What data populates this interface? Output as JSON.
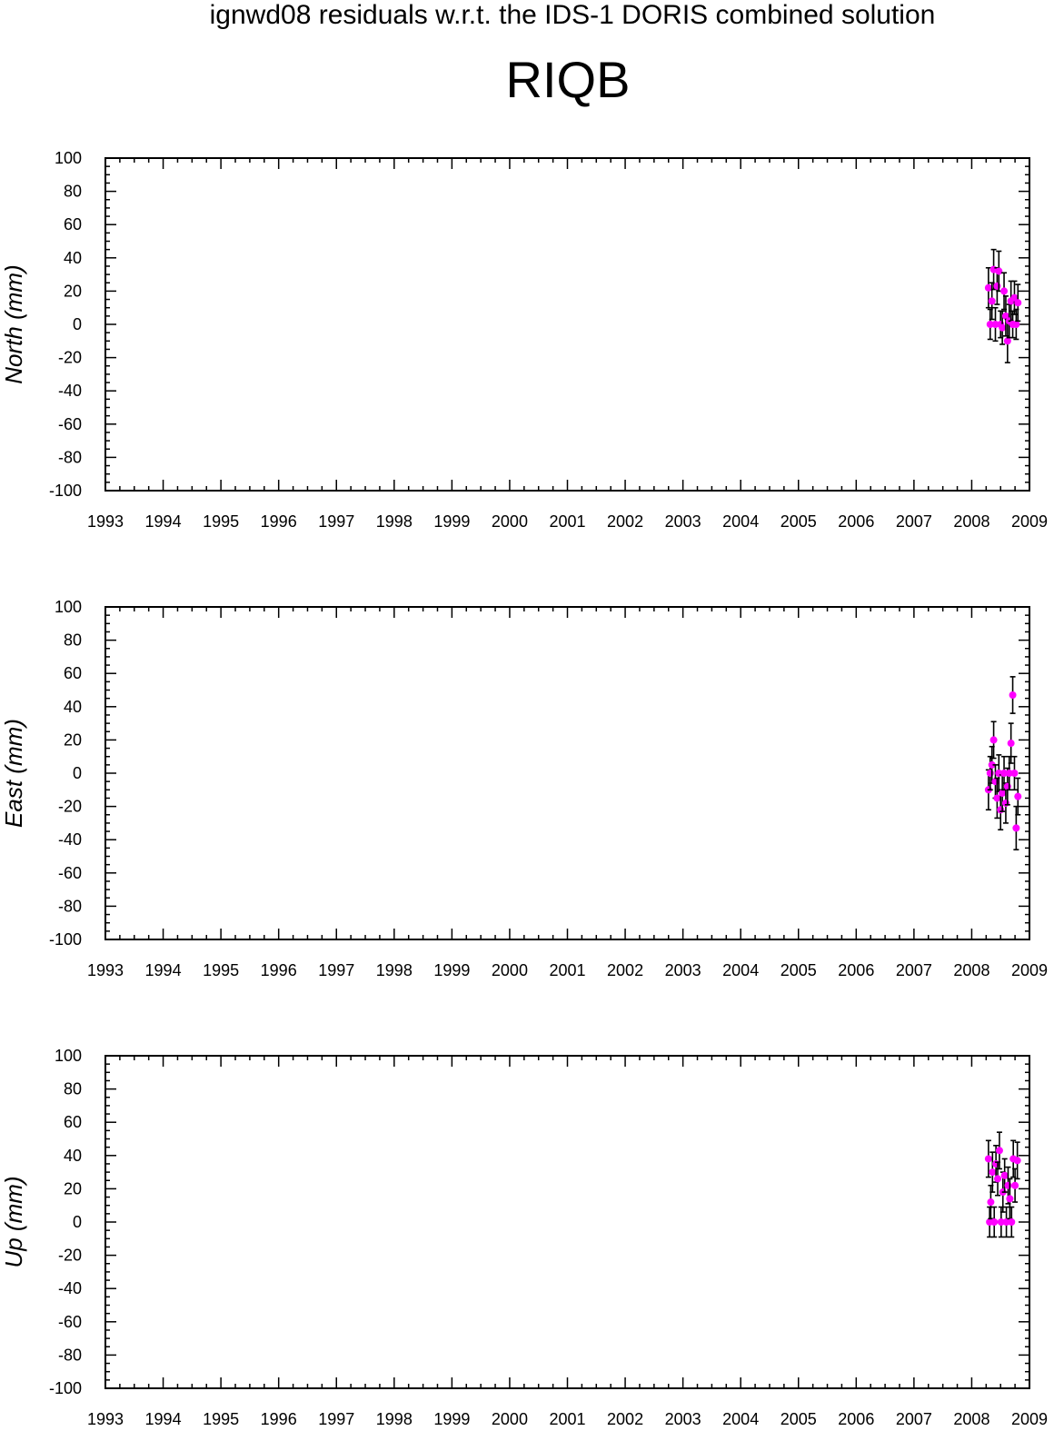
{
  "title": "ignwd08 residuals w.r.t. the IDS-1 DORIS combined solution",
  "station": "RIQB",
  "colors": {
    "marker": "#ff00ff",
    "errorbar": "#000000",
    "axis": "#000000"
  },
  "chart_data": [
    {
      "type": "scatter",
      "ylabel": "North (mm)",
      "xlim": [
        1993,
        2009
      ],
      "ylim": [
        -100,
        100
      ],
      "x_ticks": [
        "1993",
        "1994",
        "1995",
        "1996",
        "1997",
        "1998",
        "1999",
        "2000",
        "2001",
        "2002",
        "2003",
        "2004",
        "2005",
        "2006",
        "2007",
        "2008",
        "2009"
      ],
      "y_ticks": [
        "100",
        "80",
        "60",
        "40",
        "20",
        "0",
        "-20",
        "-40",
        "-60",
        "-80",
        "-100"
      ],
      "grid": false,
      "series": [
        {
          "x": [
            2008.29,
            2008.32,
            2008.35,
            2008.38,
            2008.41,
            2008.44,
            2008.47,
            2008.5,
            2008.53,
            2008.56,
            2008.59,
            2008.62,
            2008.65,
            2008.68,
            2008.71,
            2008.74,
            2008.77,
            2008.8
          ],
          "y": [
            22,
            0,
            14,
            33,
            0,
            23,
            32,
            0,
            -2,
            20,
            5,
            -10,
            2,
            14,
            0,
            16,
            0,
            13
          ],
          "err": [
            12,
            9,
            11,
            12,
            10,
            11,
            12,
            8,
            10,
            11,
            12,
            13,
            10,
            12,
            8,
            10,
            9,
            11
          ]
        }
      ]
    },
    {
      "type": "scatter",
      "ylabel": "East (mm)",
      "xlim": [
        1993,
        2009
      ],
      "ylim": [
        -100,
        100
      ],
      "x_ticks": [
        "1993",
        "1994",
        "1995",
        "1996",
        "1997",
        "1998",
        "1999",
        "2000",
        "2001",
        "2002",
        "2003",
        "2004",
        "2005",
        "2006",
        "2007",
        "2008",
        "2009"
      ],
      "y_ticks": [
        "100",
        "80",
        "60",
        "40",
        "20",
        "0",
        "-20",
        "-40",
        "-60",
        "-80",
        "-100"
      ],
      "grid": false,
      "series": [
        {
          "x": [
            2008.29,
            2008.32,
            2008.35,
            2008.38,
            2008.41,
            2008.44,
            2008.47,
            2008.5,
            2008.53,
            2008.56,
            2008.59,
            2008.62,
            2008.65,
            2008.68,
            2008.71,
            2008.74,
            2008.77,
            2008.8
          ],
          "y": [
            -10,
            0,
            5,
            20,
            -5,
            -15,
            0,
            -22,
            -12,
            0,
            -18,
            -8,
            0,
            18,
            47,
            0,
            -33,
            -14
          ],
          "err": [
            12,
            10,
            11,
            11,
            10,
            12,
            11,
            12,
            11,
            10,
            12,
            11,
            10,
            12,
            11,
            10,
            13,
            11
          ]
        }
      ]
    },
    {
      "type": "scatter",
      "ylabel": "Up (mm)",
      "xlim": [
        1993,
        2009
      ],
      "ylim": [
        -100,
        100
      ],
      "x_ticks": [
        "1993",
        "1994",
        "1995",
        "1996",
        "1997",
        "1998",
        "1999",
        "2000",
        "2001",
        "2002",
        "2003",
        "2004",
        "2005",
        "2006",
        "2007",
        "2008",
        "2009"
      ],
      "y_ticks": [
        "100",
        "80",
        "60",
        "40",
        "20",
        "0",
        "-20",
        "-40",
        "-60",
        "-80",
        "-100"
      ],
      "grid": false,
      "series": [
        {
          "x": [
            2008.29,
            2008.31,
            2008.33,
            2008.36,
            2008.39,
            2008.42,
            2008.45,
            2008.48,
            2008.51,
            2008.54,
            2008.57,
            2008.6,
            2008.63,
            2008.66,
            2008.69,
            2008.72,
            2008.75,
            2008.79
          ],
          "y": [
            38,
            0,
            12,
            30,
            0,
            35,
            26,
            43,
            0,
            18,
            28,
            0,
            22,
            14,
            0,
            38,
            22,
            37
          ],
          "err": [
            11,
            9,
            10,
            12,
            9,
            11,
            10,
            11,
            9,
            12,
            10,
            9,
            11,
            12,
            9,
            11,
            10,
            11
          ]
        }
      ]
    }
  ]
}
